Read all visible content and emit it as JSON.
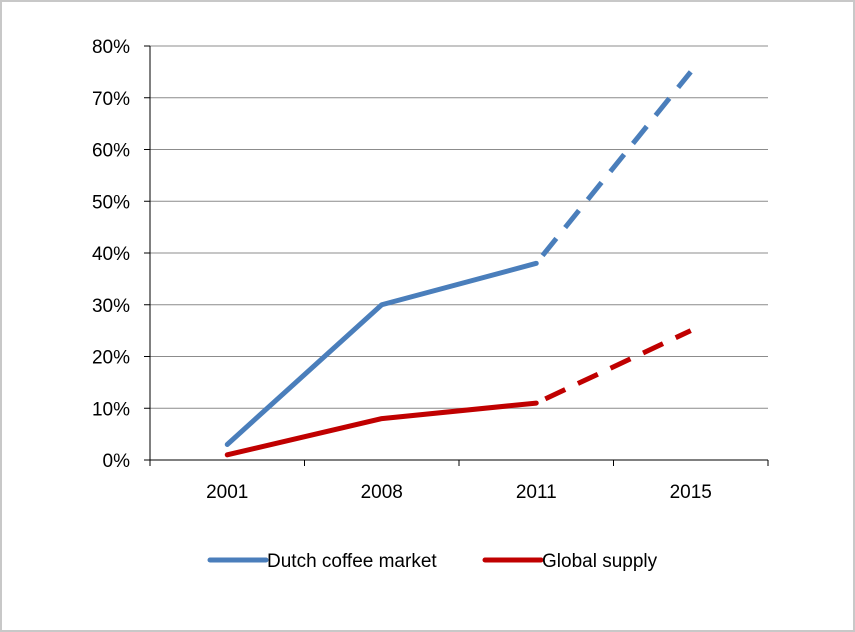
{
  "chart_data": {
    "type": "line",
    "title": "",
    "xlabel": "",
    "ylabel": "",
    "categories": [
      "2001",
      "2008",
      "2011",
      "2015"
    ],
    "ylim": [
      0,
      80
    ],
    "yticks": [
      "0%",
      "10%",
      "20%",
      "30%",
      "40%",
      "50%",
      "60%",
      "70%",
      "80%"
    ],
    "grid": true,
    "legend_position": "bottom",
    "series": [
      {
        "name": "Dutch coffee market",
        "values": [
          3,
          30,
          38,
          75
        ],
        "color": "#4a7ebb",
        "projected_from_index": 2
      },
      {
        "name": "Global supply",
        "values": [
          1,
          8,
          11,
          25
        ],
        "color": "#c00000",
        "projected_from_index": 2
      }
    ]
  }
}
